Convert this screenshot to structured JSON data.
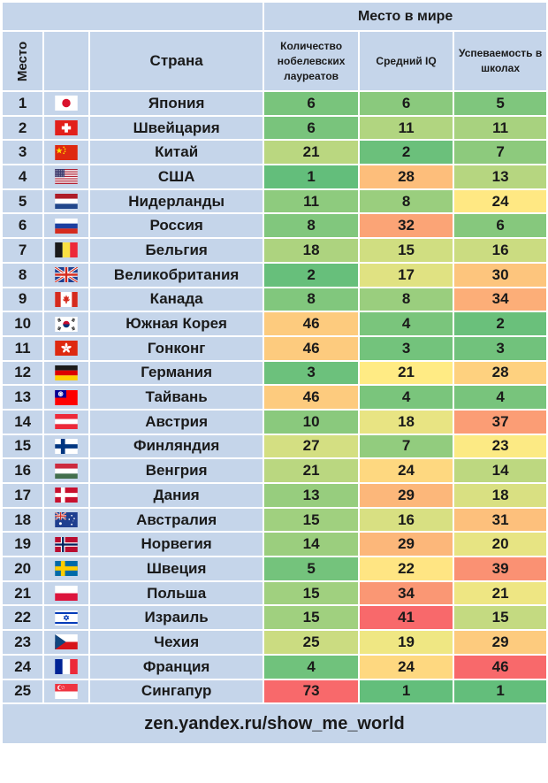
{
  "header": {
    "group_title": "Место в мире",
    "rank_label": "Место",
    "country_label": "Страна",
    "metric_labels": [
      "Количество нобелевских лауреатов",
      "Средний IQ",
      "Успеваемость в школах"
    ]
  },
  "footer": {
    "source": "zen.yandex.ru/show_me_world"
  },
  "colors": {
    "header_bg": "#c5d5ea",
    "scale_best": "#63be7b",
    "scale_mid": "#ffeb84",
    "scale_worst": "#f8696b"
  },
  "chart_data": {
    "type": "table",
    "columns": [
      "Место",
      "Страна",
      "Количество нобелевских лауреатов",
      "Средний IQ",
      "Успеваемость в школах"
    ],
    "rows": [
      {
        "rank": "1",
        "country": "Япония",
        "flag": "japan-flag",
        "nobel": 6,
        "iq": 6,
        "school": 5
      },
      {
        "rank": "2",
        "country": "Швейцария",
        "flag": "switzerland-flag",
        "nobel": 6,
        "iq": 11,
        "school": 11
      },
      {
        "rank": "3",
        "country": "Китай",
        "flag": "china-flag",
        "nobel": 21,
        "iq": 2,
        "school": 7
      },
      {
        "rank": "4",
        "country": "США",
        "flag": "usa-flag",
        "nobel": 1,
        "iq": 28,
        "school": 13
      },
      {
        "rank": "5",
        "country": "Нидерланды",
        "flag": "netherlands-flag",
        "nobel": 11,
        "iq": 8,
        "school": 24
      },
      {
        "rank": "6",
        "country": "Россия",
        "flag": "russia-flag",
        "nobel": 8,
        "iq": 32,
        "school": 6
      },
      {
        "rank": "7",
        "country": "Бельгия",
        "flag": "belgium-flag",
        "nobel": 18,
        "iq": 15,
        "school": 16
      },
      {
        "rank": "8",
        "country": "Великобритания",
        "flag": "uk-flag",
        "nobel": 2,
        "iq": 17,
        "school": 30
      },
      {
        "rank": "9",
        "country": "Канада",
        "flag": "canada-flag",
        "nobel": 8,
        "iq": 8,
        "school": 34
      },
      {
        "rank": "10",
        "country": "Южная Корея",
        "flag": "south-korea-flag",
        "nobel": 46,
        "iq": 4,
        "school": 2
      },
      {
        "rank": "11",
        "country": "Гонконг",
        "flag": "hong-kong-flag",
        "nobel": 46,
        "iq": 3,
        "school": 3
      },
      {
        "rank": "12",
        "country": "Германия",
        "flag": "germany-flag",
        "nobel": 3,
        "iq": 21,
        "school": 28
      },
      {
        "rank": "13",
        "country": "Тайвань",
        "flag": "taiwan-flag",
        "nobel": 46,
        "iq": 4,
        "school": 4
      },
      {
        "rank": "14",
        "country": "Австрия",
        "flag": "austria-flag",
        "nobel": 10,
        "iq": 18,
        "school": 37
      },
      {
        "rank": "15",
        "country": "Финляндия",
        "flag": "finland-flag",
        "nobel": 27,
        "iq": 7,
        "school": 23
      },
      {
        "rank": "16",
        "country": "Венгрия",
        "flag": "hungary-flag",
        "nobel": 21,
        "iq": 24,
        "school": 14
      },
      {
        "rank": "17",
        "country": "Дания",
        "flag": "denmark-flag",
        "nobel": 13,
        "iq": 29,
        "school": 18
      },
      {
        "rank": "18",
        "country": "Австралия",
        "flag": "australia-flag",
        "nobel": 15,
        "iq": 16,
        "school": 31
      },
      {
        "rank": "19",
        "country": "Норвегия",
        "flag": "norway-flag",
        "nobel": 14,
        "iq": 29,
        "school": 20
      },
      {
        "rank": "20",
        "country": "Швеция",
        "flag": "sweden-flag",
        "nobel": 5,
        "iq": 22,
        "school": 39
      },
      {
        "rank": "21",
        "country": "Польша",
        "flag": "poland-flag",
        "nobel": 15,
        "iq": 34,
        "school": 21
      },
      {
        "rank": "22",
        "country": "Израиль",
        "flag": "israel-flag",
        "nobel": 15,
        "iq": 41,
        "school": 15
      },
      {
        "rank": "23",
        "country": "Чехия",
        "flag": "czech-flag",
        "nobel": 25,
        "iq": 19,
        "school": 29
      },
      {
        "rank": "24",
        "country": "Франция",
        "flag": "france-flag",
        "nobel": 4,
        "iq": 24,
        "school": 46
      },
      {
        "rank": "25",
        "country": "Сингапур",
        "flag": "singapore-flag",
        "nobel": 73,
        "iq": 1,
        "school": 1
      }
    ]
  }
}
